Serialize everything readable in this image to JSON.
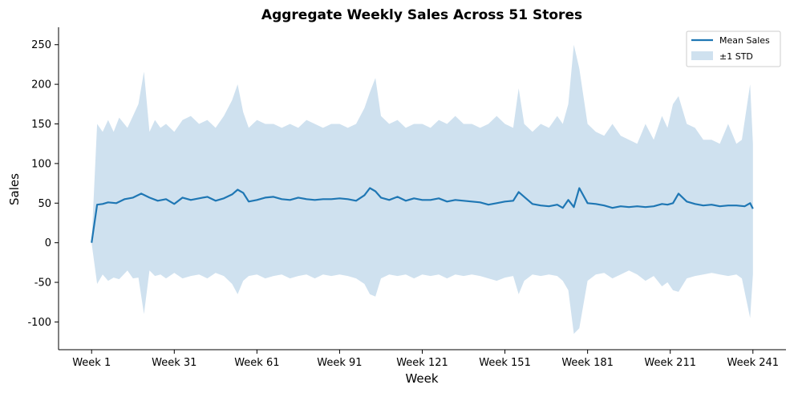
{
  "chart_data": {
    "type": "line",
    "title": "Aggregate Weekly Sales Across 51 Stores",
    "xlabel": "Week",
    "ylabel": "Sales",
    "x_range": [
      1,
      241
    ],
    "ylim": [
      -135,
      272
    ],
    "x_ticks": [
      {
        "value": 1,
        "label": "Week 1"
      },
      {
        "value": 31,
        "label": "Week 31"
      },
      {
        "value": 61,
        "label": "Week 61"
      },
      {
        "value": 91,
        "label": "Week 91"
      },
      {
        "value": 121,
        "label": "Week 121"
      },
      {
        "value": 151,
        "label": "Week 151"
      },
      {
        "value": 181,
        "label": "Week 181"
      },
      {
        "value": 211,
        "label": "Week 211"
      },
      {
        "value": 241,
        "label": "Week 241"
      }
    ],
    "y_ticks": [
      {
        "value": 250,
        "label": "250"
      },
      {
        "value": 200,
        "label": "200"
      },
      {
        "value": 150,
        "label": "150"
      },
      {
        "value": 100,
        "label": "100"
      },
      {
        "value": 50,
        "label": "50"
      },
      {
        "value": 0,
        "label": "0"
      },
      {
        "value": -50,
        "label": "-50"
      },
      {
        "value": -100,
        "label": "-100"
      }
    ],
    "grid": false,
    "legend_position": "top-right",
    "legend": [
      {
        "label": "Mean Sales",
        "kind": "line",
        "color": "#1f77b4"
      },
      {
        "label": "±1 STD",
        "kind": "band",
        "color": "#cfe1ef"
      }
    ],
    "series": [
      {
        "name": "Mean Sales",
        "color": "#1f77b4",
        "x": [
          1,
          3,
          5,
          7,
          10,
          13,
          16,
          19,
          22,
          25,
          28,
          31,
          34,
          37,
          40,
          43,
          46,
          49,
          52,
          54,
          56,
          58,
          61,
          64,
          67,
          70,
          73,
          76,
          79,
          82,
          85,
          88,
          91,
          94,
          97,
          100,
          102,
          104,
          106,
          109,
          112,
          115,
          118,
          121,
          124,
          127,
          130,
          133,
          136,
          139,
          142,
          145,
          148,
          151,
          154,
          156,
          158,
          161,
          164,
          167,
          170,
          172,
          174,
          176,
          178,
          181,
          184,
          187,
          190,
          193,
          196,
          199,
          202,
          205,
          208,
          210,
          212,
          214,
          217,
          220,
          223,
          226,
          229,
          232,
          235,
          238,
          240,
          241
        ],
        "y": [
          0,
          48,
          49,
          51,
          50,
          55,
          57,
          62,
          57,
          53,
          55,
          49,
          57,
          54,
          56,
          58,
          53,
          56,
          61,
          67,
          63,
          52,
          54,
          57,
          58,
          55,
          54,
          57,
          55,
          54,
          55,
          55,
          56,
          55,
          53,
          60,
          69,
          65,
          57,
          54,
          58,
          53,
          56,
          54,
          54,
          56,
          52,
          54,
          53,
          52,
          51,
          48,
          50,
          52,
          53,
          64,
          58,
          49,
          47,
          46,
          48,
          44,
          54,
          45,
          69,
          50,
          49,
          47,
          44,
          46,
          45,
          46,
          45,
          46,
          49,
          48,
          50,
          62,
          52,
          49,
          47,
          48,
          46,
          47,
          47,
          46,
          50,
          43
        ]
      }
    ],
    "band": {
      "name": "±1 STD",
      "color": "#cfe1ef",
      "x": [
        1,
        3,
        5,
        7,
        9,
        11,
        14,
        16,
        18,
        20,
        22,
        24,
        26,
        28,
        31,
        34,
        37,
        40,
        43,
        46,
        49,
        52,
        54,
        56,
        58,
        61,
        64,
        67,
        70,
        73,
        76,
        79,
        82,
        85,
        88,
        91,
        94,
        97,
        100,
        102,
        104,
        106,
        109,
        112,
        115,
        118,
        121,
        124,
        127,
        130,
        133,
        136,
        139,
        142,
        145,
        148,
        151,
        154,
        156,
        158,
        161,
        164,
        167,
        170,
        172,
        174,
        176,
        178,
        181,
        184,
        187,
        190,
        193,
        196,
        199,
        202,
        205,
        208,
        210,
        212,
        214,
        217,
        220,
        223,
        226,
        229,
        232,
        235,
        237,
        240,
        241
      ],
      "upper": [
        0,
        150,
        140,
        155,
        140,
        158,
        145,
        160,
        175,
        216,
        140,
        155,
        145,
        150,
        140,
        155,
        160,
        150,
        155,
        145,
        160,
        180,
        200,
        165,
        145,
        155,
        150,
        150,
        145,
        150,
        145,
        155,
        150,
        145,
        150,
        150,
        145,
        150,
        170,
        190,
        208,
        160,
        150,
        155,
        145,
        150,
        150,
        145,
        155,
        150,
        160,
        150,
        150,
        145,
        150,
        160,
        150,
        145,
        195,
        150,
        140,
        150,
        145,
        160,
        150,
        175,
        250,
        220,
        150,
        140,
        135,
        150,
        135,
        130,
        125,
        150,
        130,
        160,
        145,
        175,
        185,
        150,
        145,
        130,
        130,
        125,
        150,
        125,
        130,
        200,
        125
      ],
      "lower": [
        0,
        -52,
        -40,
        -48,
        -44,
        -46,
        -35,
        -45,
        -44,
        -90,
        -35,
        -42,
        -40,
        -45,
        -38,
        -45,
        -42,
        -40,
        -45,
        -38,
        -42,
        -52,
        -65,
        -48,
        -42,
        -40,
        -45,
        -42,
        -40,
        -45,
        -42,
        -40,
        -45,
        -40,
        -42,
        -40,
        -42,
        -45,
        -52,
        -65,
        -68,
        -45,
        -40,
        -42,
        -40,
        -45,
        -40,
        -42,
        -40,
        -45,
        -40,
        -42,
        -40,
        -42,
        -45,
        -48,
        -44,
        -42,
        -65,
        -48,
        -40,
        -42,
        -40,
        -42,
        -48,
        -60,
        -115,
        -108,
        -48,
        -40,
        -38,
        -45,
        -40,
        -35,
        -40,
        -48,
        -42,
        -55,
        -50,
        -60,
        -62,
        -45,
        -42,
        -40,
        -38,
        -40,
        -42,
        -40,
        -45,
        -95,
        -40
      ]
    }
  }
}
